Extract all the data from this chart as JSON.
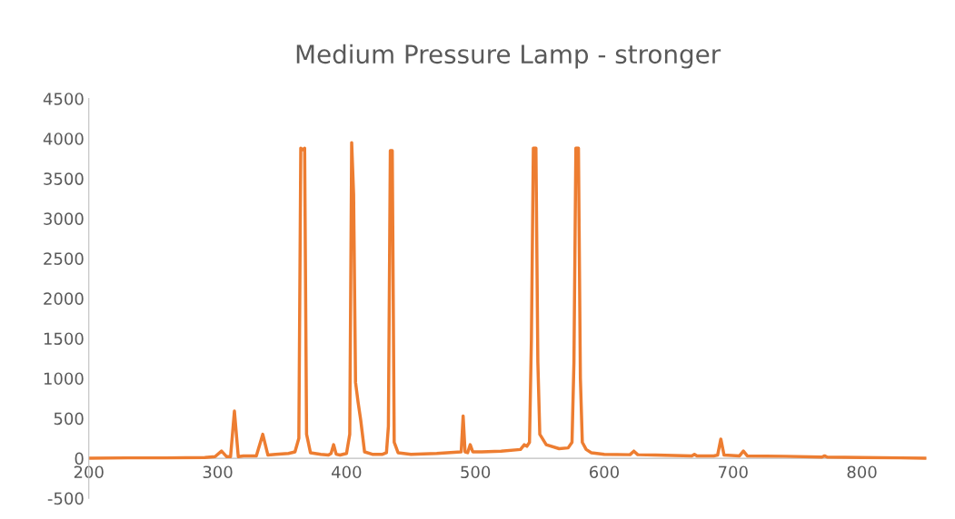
{
  "chart_data": {
    "type": "line",
    "title": "Medium Pressure Lamp - stronger",
    "series": [
      {
        "color": "#ed7d31",
        "x": [
          200,
          230,
          260,
          290,
          298,
          303,
          307,
          310,
          313,
          316,
          320,
          330,
          335,
          339,
          345,
          355,
          360,
          363,
          364.5,
          366,
          367.5,
          369,
          372,
          380,
          386,
          388,
          390,
          392,
          395,
          400,
          402.5,
          404,
          405.5,
          407,
          409,
          411,
          414,
          420,
          428,
          431,
          432.5,
          434,
          435.5,
          437,
          440,
          450,
          470,
          489,
          490.5,
          492,
          494,
          496,
          498,
          505,
          520,
          535,
          538,
          540,
          542,
          543.5,
          545,
          547,
          548.5,
          550,
          555,
          565,
          572,
          575,
          576.5,
          578,
          580,
          581.5,
          583,
          586,
          590,
          600,
          620,
          623,
          626,
          640,
          668,
          670,
          672,
          685,
          688,
          690.5,
          693,
          705,
          708,
          711,
          740,
          769,
          771,
          773,
          800,
          830,
          850
        ],
        "values": [
          0,
          5,
          5,
          10,
          20,
          90,
          20,
          20,
          590,
          20,
          30,
          30,
          300,
          40,
          50,
          60,
          80,
          250,
          3880,
          3860,
          3880,
          300,
          70,
          50,
          40,
          60,
          170,
          50,
          40,
          60,
          300,
          3950,
          3300,
          950,
          700,
          480,
          80,
          50,
          50,
          70,
          400,
          3850,
          3850,
          200,
          70,
          50,
          60,
          80,
          530,
          80,
          70,
          170,
          80,
          80,
          90,
          110,
          170,
          150,
          200,
          1500,
          3880,
          3880,
          1200,
          300,
          170,
          120,
          130,
          200,
          1200,
          3880,
          3880,
          1000,
          200,
          110,
          70,
          50,
          45,
          90,
          45,
          40,
          30,
          50,
          30,
          30,
          40,
          240,
          40,
          30,
          90,
          30,
          25,
          15,
          30,
          15,
          10,
          5,
          0
        ]
      }
    ],
    "xlim": [
      200,
      850
    ],
    "xticks": [
      200,
      300,
      400,
      500,
      600,
      700,
      800
    ],
    "ylim": [
      -500,
      4500
    ],
    "yticks": [
      -500,
      0,
      500,
      1000,
      1500,
      2000,
      2500,
      3000,
      3500,
      4000,
      4500
    ],
    "grid": false,
    "legend": false,
    "marker": "none",
    "line_style": "solid"
  }
}
